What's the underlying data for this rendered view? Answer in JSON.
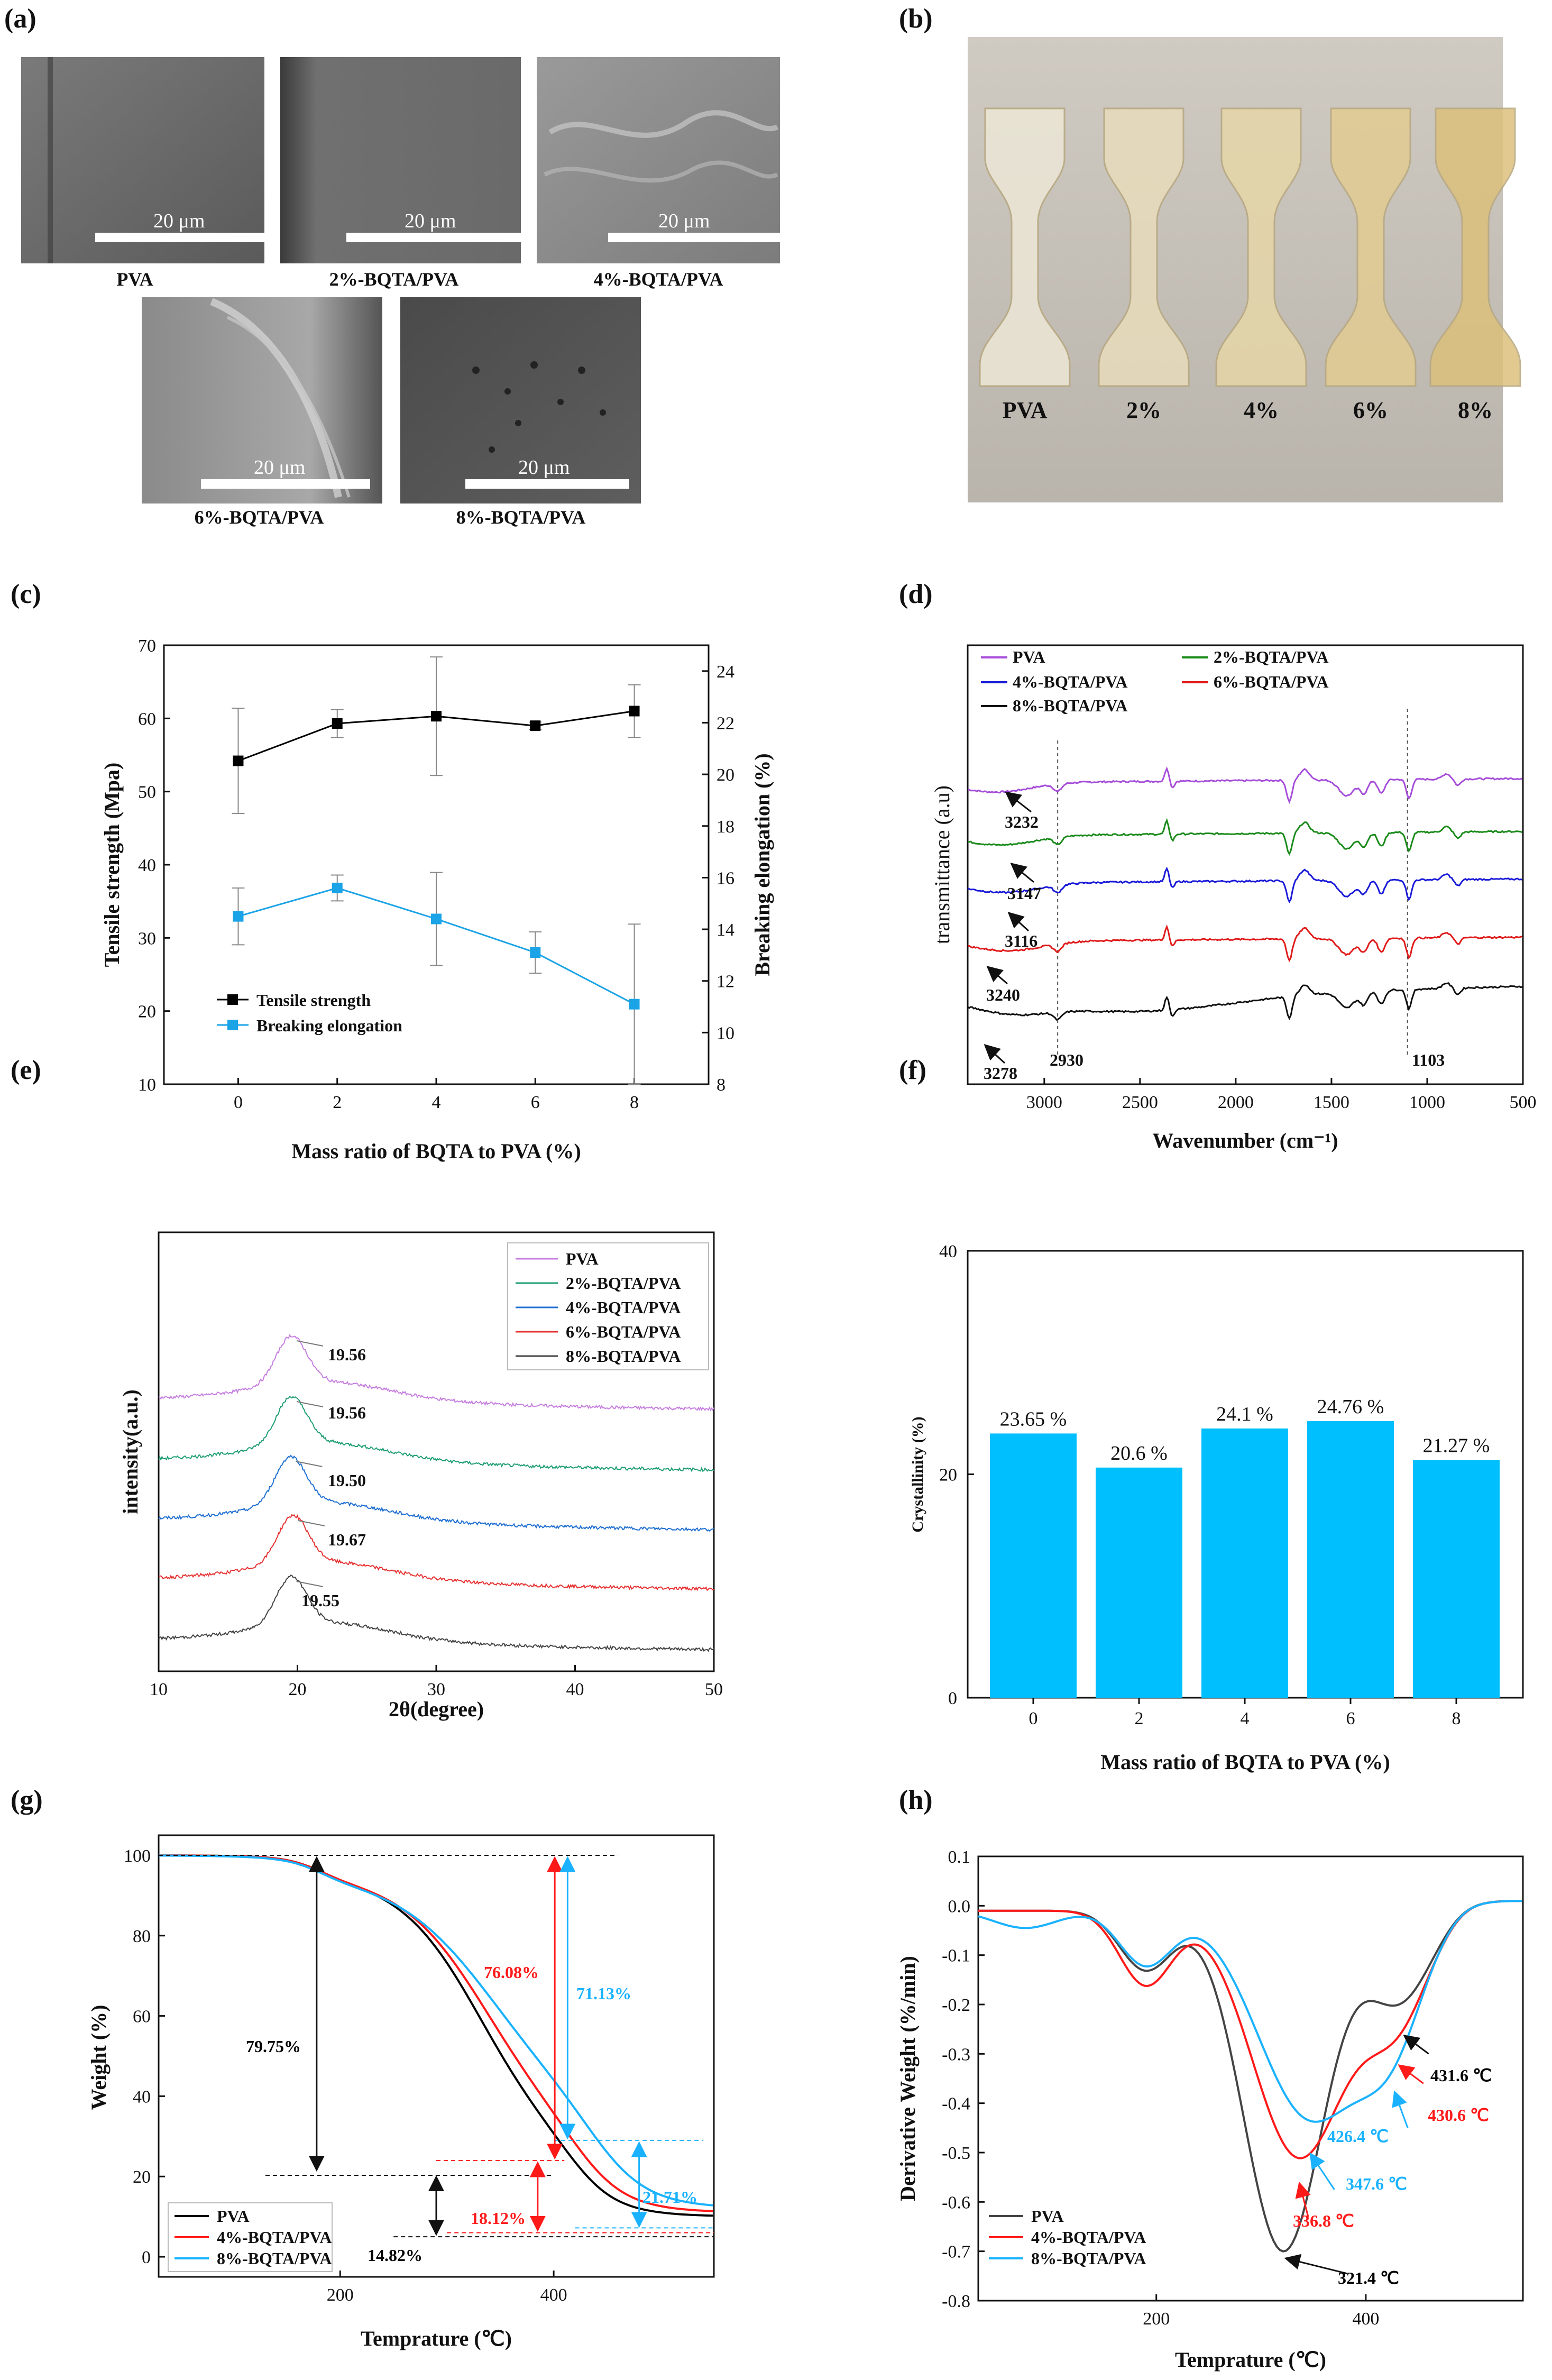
{
  "panels": {
    "a": "(a)",
    "b": "(b)",
    "c": "(c)",
    "d": "(d)",
    "e": "(e)",
    "f": "(f)",
    "g": "(g)",
    "h": "(h)"
  },
  "sem_images": {
    "scale_label": "20 μm",
    "captions": [
      "PVA",
      "2%-BQTA/PVA",
      "4%-BQTA/PVA",
      "6%-BQTA/PVA",
      "8%-BQTA/PVA"
    ]
  },
  "photo": {
    "labels": [
      "PVA",
      "2%",
      "4%",
      "6%",
      "8%"
    ]
  },
  "chart_data": [
    {
      "id": "c",
      "type": "line",
      "xlabel": "Mass ratio of BQTA to PVA (%)",
      "ylabel": "Tensile strength (Mpa)",
      "y2label": "Breaking elongation (%)",
      "x": [
        0,
        2,
        4,
        6,
        8
      ],
      "xticks": [
        "0",
        "2",
        "4",
        "6",
        "8"
      ],
      "ylim": [
        10,
        70
      ],
      "yticks": [
        "10",
        "20",
        "30",
        "40",
        "50",
        "60",
        "70"
      ],
      "y2lim": [
        8,
        25
      ],
      "y2ticks": [
        "8",
        "10",
        "12",
        "14",
        "16",
        "18",
        "20",
        "22",
        "24"
      ],
      "series": [
        {
          "name": "Tensile strength",
          "axis": "left",
          "color": "#000000",
          "values": [
            54.2,
            59.3,
            60.3,
            59.0,
            61.0
          ],
          "errors": [
            7.2,
            1.9,
            8.1,
            0.5,
            3.6
          ]
        },
        {
          "name": "Breaking elongation",
          "axis": "right",
          "color": "#1aa3e6",
          "values": [
            14.5,
            15.6,
            14.4,
            13.1,
            11.1
          ],
          "errors": [
            1.1,
            0.5,
            1.8,
            0.8,
            3.1
          ]
        }
      ]
    },
    {
      "id": "d",
      "type": "line",
      "xlabel": "Wavenumber (cm⁻¹)",
      "ylabel": "transmittance (a.u)",
      "xlim": [
        3400,
        500
      ],
      "xticks": [
        "3000",
        "2500",
        "2000",
        "1500",
        "1000",
        "500"
      ],
      "series": [
        {
          "name": "PVA",
          "color": "#a64dd9"
        },
        {
          "name": "2%-BQTA/PVA",
          "color": "#1a8a1a"
        },
        {
          "name": "4%-BQTA/PVA",
          "color": "#1a1ad9"
        },
        {
          "name": "6%-BQTA/PVA",
          "color": "#e01a1a"
        },
        {
          "name": "8%-BQTA/PVA",
          "color": "#111111"
        }
      ],
      "annotations": [
        "3232",
        "3147",
        "3116",
        "3240",
        "3278",
        "2930",
        "1103"
      ]
    },
    {
      "id": "e",
      "type": "line",
      "xlabel": "2θ(degree)",
      "ylabel": "intensity(a.u.)",
      "xlim": [
        10,
        50
      ],
      "xticks": [
        "10",
        "20",
        "30",
        "40",
        "50"
      ],
      "series": [
        {
          "name": "PVA",
          "color": "#c77ee0",
          "peak": "19.56"
        },
        {
          "name": "2%-BQTA/PVA",
          "color": "#1f9e73",
          "peak": "19.56"
        },
        {
          "name": "4%-BQTA/PVA",
          "color": "#1f6fd1",
          "peak": "19.50"
        },
        {
          "name": "6%-BQTA/PVA",
          "color": "#e63232",
          "peak": "19.67"
        },
        {
          "name": "8%-BQTA/PVA",
          "color": "#444444",
          "peak": "19.55"
        }
      ]
    },
    {
      "id": "f",
      "type": "bar",
      "xlabel": "Mass ratio of BQTA to PVA (%)",
      "ylabel": "Crystallinity (%)",
      "categories": [
        "0",
        "2",
        "4",
        "6",
        "8"
      ],
      "values": [
        23.65,
        20.6,
        24.1,
        24.76,
        21.27
      ],
      "value_labels": [
        "23.65 %",
        "20.6 %",
        "24.1 %",
        "24.76 %",
        "21.27 %"
      ],
      "ylim": [
        0,
        40
      ],
      "yticks": [
        "0",
        "20",
        "40"
      ],
      "color": "#00bfff"
    },
    {
      "id": "g",
      "type": "line",
      "xlabel": "Temprature (℃)",
      "ylabel": "Weight (%)",
      "xlim": [
        30,
        550
      ],
      "xticks": [
        "200",
        "400"
      ],
      "ylim": [
        -5,
        105
      ],
      "yticks": [
        "0",
        "20",
        "40",
        "60",
        "80",
        "100"
      ],
      "series": [
        {
          "name": "PVA",
          "color": "#000000"
        },
        {
          "name": "4%-BQTA/PVA",
          "color": "#ff1a1a"
        },
        {
          "name": "8%-BQTA/PVA",
          "color": "#1ab2ff"
        }
      ],
      "annotations": [
        {
          "text": "79.75%",
          "color": "#000000"
        },
        {
          "text": "76.08%",
          "color": "#ff1a1a"
        },
        {
          "text": "71.13%",
          "color": "#1ab2ff"
        },
        {
          "text": "14.82%",
          "color": "#000000"
        },
        {
          "text": "18.12%",
          "color": "#ff1a1a"
        },
        {
          "text": "21.71%",
          "color": "#1ab2ff"
        }
      ]
    },
    {
      "id": "h",
      "type": "line",
      "xlabel": "Temprature (℃)",
      "ylabel": "Derivative Weight (%/min)",
      "xlim": [
        30,
        550
      ],
      "xticks": [
        "200",
        "400"
      ],
      "ylim": [
        -0.8,
        0.1
      ],
      "yticks": [
        "0.1",
        "0.0",
        "-0.1",
        "-0.2",
        "-0.3",
        "-0.4",
        "-0.5",
        "-0.6",
        "-0.7",
        "-0.8"
      ],
      "series": [
        {
          "name": "PVA",
          "color": "#444444"
        },
        {
          "name": "4%-BQTA/PVA",
          "color": "#ff1a1a"
        },
        {
          "name": "8%-BQTA/PVA",
          "color": "#1ab2ff"
        }
      ],
      "annotations": [
        {
          "text": "431.6 ℃",
          "color": "#000000"
        },
        {
          "text": "430.6 ℃",
          "color": "#ff1a1a"
        },
        {
          "text": "426.4 ℃",
          "color": "#1ab2ff"
        },
        {
          "text": "347.6 ℃",
          "color": "#1ab2ff"
        },
        {
          "text": "336.8 ℃",
          "color": "#ff1a1a"
        },
        {
          "text": "321.4 ℃",
          "color": "#000000"
        }
      ]
    }
  ]
}
